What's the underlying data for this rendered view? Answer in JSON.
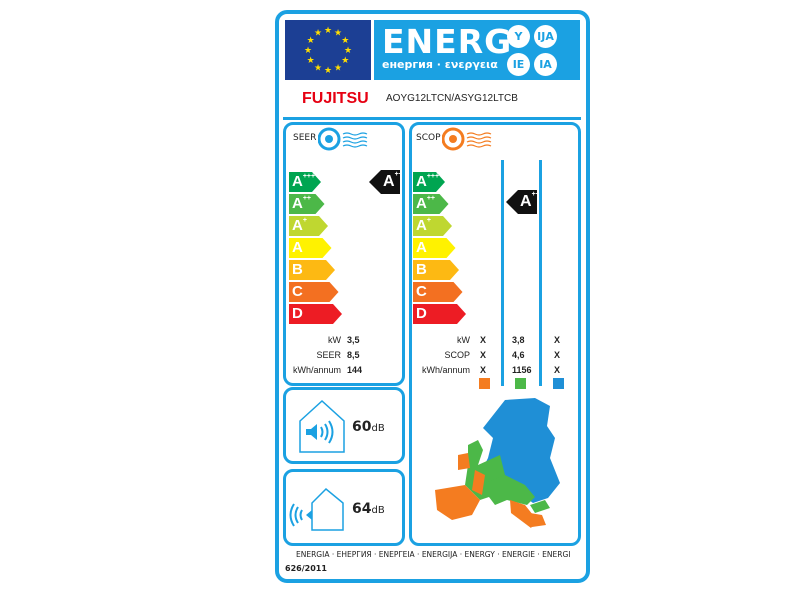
{
  "header": {
    "energ": "ENERG",
    "subtitle": "енергия · ενεργεια",
    "langs": [
      "Y",
      "IJA",
      "IE",
      "IA"
    ]
  },
  "brand": "FUJITSU",
  "model": "AOYG12LTCN/ASYG12LTCB",
  "cooling": {
    "label": "SEER",
    "rating": "A",
    "rating_sup": "+++",
    "classes": [
      {
        "l": "A",
        "s": "+++",
        "c": "#00a551"
      },
      {
        "l": "A",
        "s": "++",
        "c": "#4cb848"
      },
      {
        "l": "A",
        "s": "+",
        "c": "#bfd730"
      },
      {
        "l": "A",
        "s": "",
        "c": "#fff200"
      },
      {
        "l": "B",
        "s": "",
        "c": "#fdb913"
      },
      {
        "l": "C",
        "s": "",
        "c": "#f37021"
      },
      {
        "l": "D",
        "s": "",
        "c": "#ed1c24"
      }
    ],
    "rows": [
      {
        "k": "kW",
        "v": "3,5"
      },
      {
        "k": "SEER",
        "v": "8,5"
      },
      {
        "k": "kWh/annum",
        "v": "144"
      }
    ]
  },
  "heating": {
    "label": "SCOP",
    "rating": "A",
    "rating_sup": "++",
    "rows": [
      {
        "k": "kW",
        "v": [
          "X",
          "3,8",
          "X"
        ]
      },
      {
        "k": "SCOP",
        "v": [
          "X",
          "4,6",
          "X"
        ]
      },
      {
        "k": "kWh/annum",
        "v": [
          "X",
          "1156",
          "X"
        ]
      }
    ],
    "zone_colors": [
      "#f47c20",
      "#4cb848",
      "#1f8fd6"
    ]
  },
  "noise_indoor": {
    "value": "60",
    "unit": "dB"
  },
  "noise_outdoor": {
    "value": "64",
    "unit": "dB"
  },
  "footer": {
    "languages": "ENERGIA · ЕНЕРГИЯ · ΕΝΕΡΓΕΙΑ · ENERGIJA · ENERGY · ENERGIE · ENERGI",
    "regulation": "626/2011"
  }
}
